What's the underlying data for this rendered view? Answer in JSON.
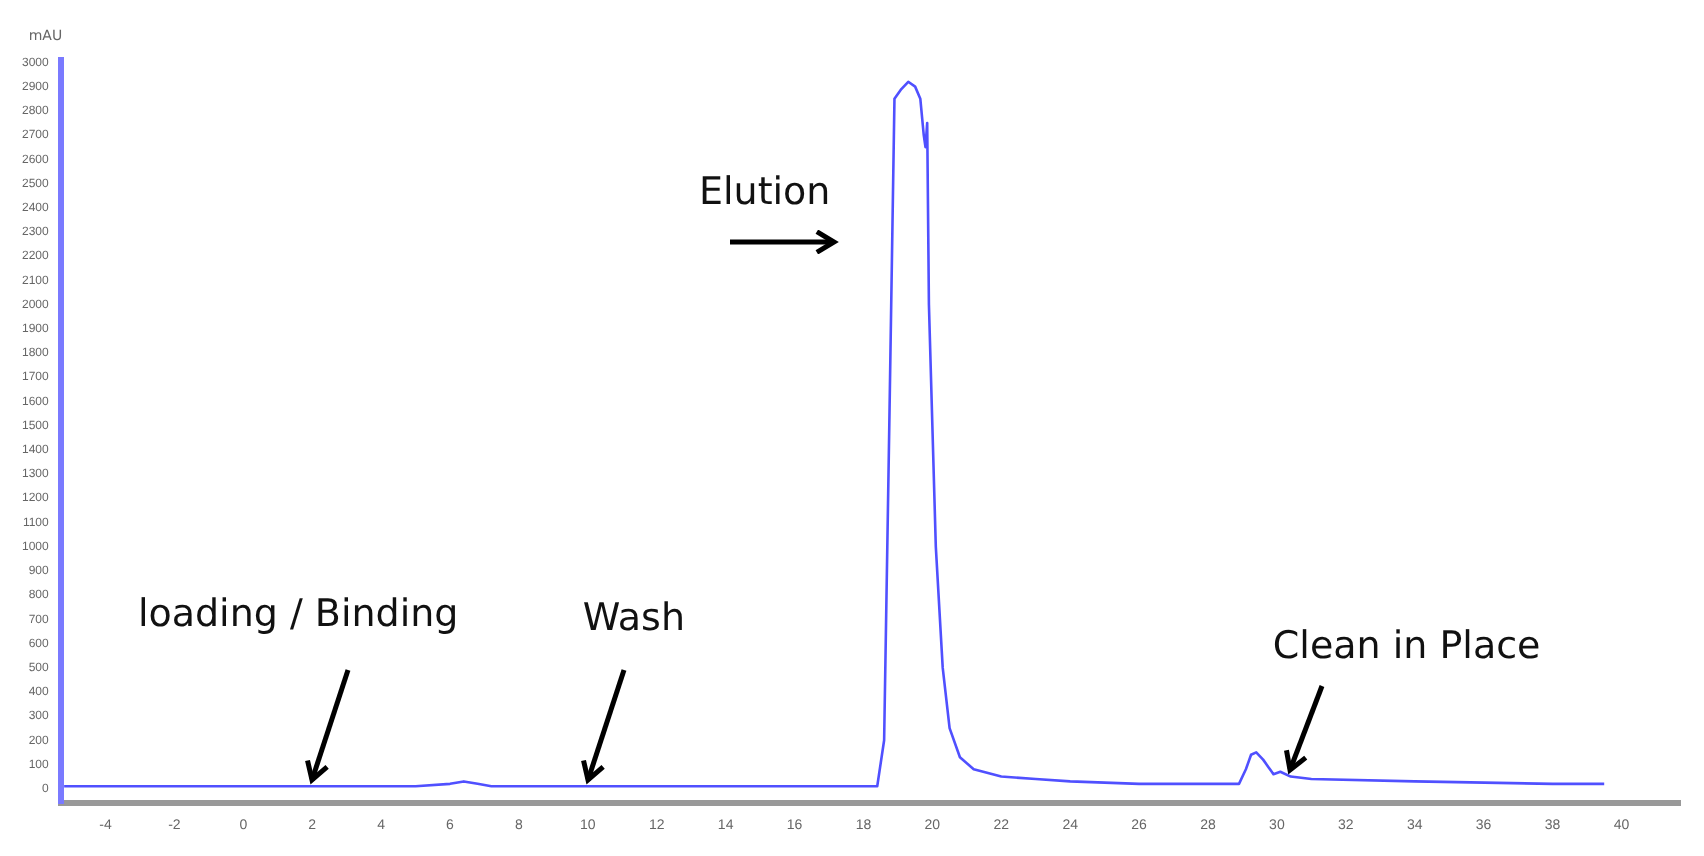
{
  "chart_data": {
    "type": "line",
    "ylabel": "mAU",
    "series": [
      {
        "color": "#5050ff",
        "x": [
          -5.2,
          -4,
          -2,
          0,
          2,
          4,
          5,
          6,
          6.4,
          6.8,
          7.2,
          8,
          10,
          12,
          14,
          16,
          17.5,
          18.2,
          18.4,
          18.6,
          18.75,
          18.9,
          19.1,
          19.3,
          19.5,
          19.65,
          19.75,
          19.8,
          19.85,
          19.9,
          20.1,
          20.3,
          20.5,
          20.8,
          21.2,
          22,
          23,
          24,
          26,
          28,
          28.9,
          29.1,
          29.25,
          29.4,
          29.6,
          29.75,
          29.9,
          30.1,
          30.4,
          31,
          34,
          38,
          39.5
        ],
        "values": [
          10,
          10,
          10,
          10,
          10,
          10,
          10,
          20,
          30,
          20,
          10,
          10,
          10,
          10,
          10,
          10,
          10,
          10,
          10,
          200,
          1500,
          2850,
          2890,
          2920,
          2900,
          2850,
          2700,
          2650,
          2750,
          2000,
          1000,
          500,
          250,
          130,
          80,
          50,
          40,
          30,
          20,
          20,
          20,
          80,
          140,
          150,
          120,
          90,
          60,
          70,
          50,
          40,
          30,
          20,
          20
        ]
      }
    ],
    "xlim": [
      -5.3,
      41.7
    ],
    "xticks": [
      -4,
      -2,
      0,
      2,
      4,
      6,
      8,
      10,
      12,
      14,
      16,
      18,
      20,
      22,
      24,
      26,
      28,
      30,
      32,
      34,
      36,
      38,
      40
    ],
    "ylim": [
      -60,
      3010
    ],
    "yticks": [
      0,
      100,
      200,
      300,
      400,
      500,
      600,
      700,
      800,
      900,
      1000,
      1100,
      1200,
      1300,
      1400,
      1500,
      1600,
      1700,
      1800,
      1900,
      2000,
      2100,
      2200,
      2300,
      2400,
      2500,
      2600,
      2700,
      2800,
      2900,
      3000
    ],
    "grid": false,
    "marker": "none",
    "line_style": "solid",
    "annotations": [
      {
        "text": "loading / Binding",
        "x": 2,
        "y": 10
      },
      {
        "text": "Wash",
        "x": 10,
        "y": 10
      },
      "Elution",
      {
        "text": "Clean in Place",
        "x": 30.4,
        "y": 50
      }
    ]
  }
}
